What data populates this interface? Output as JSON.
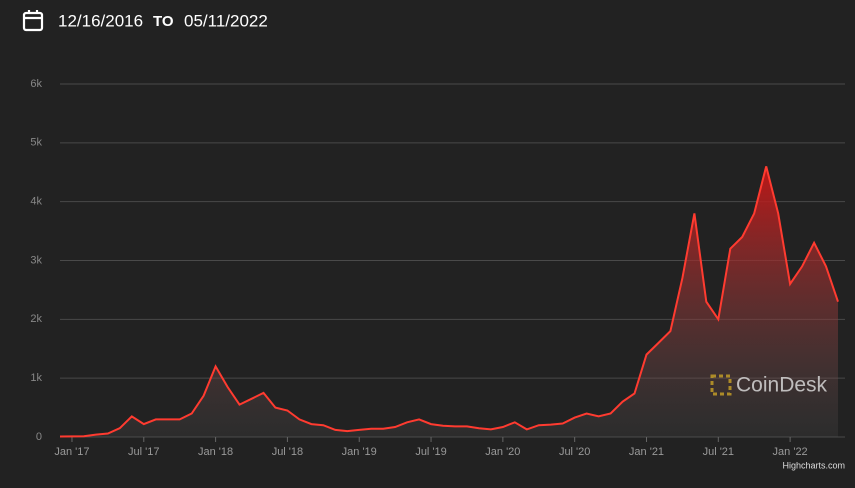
{
  "header": {
    "from": "12/16/2016",
    "separator": "TO",
    "to": "05/11/2022"
  },
  "chart_data": {
    "type": "area",
    "color": "#ff3b30",
    "x": [
      "2016-12",
      "2017-01",
      "2017-02",
      "2017-03",
      "2017-04",
      "2017-05",
      "2017-06",
      "2017-07",
      "2017-08",
      "2017-09",
      "2017-10",
      "2017-11",
      "2017-12",
      "2018-01",
      "2018-02",
      "2018-03",
      "2018-04",
      "2018-05",
      "2018-06",
      "2018-07",
      "2018-08",
      "2018-09",
      "2018-10",
      "2018-11",
      "2018-12",
      "2019-01",
      "2019-02",
      "2019-03",
      "2019-04",
      "2019-05",
      "2019-06",
      "2019-07",
      "2019-08",
      "2019-09",
      "2019-10",
      "2019-11",
      "2019-12",
      "2020-01",
      "2020-02",
      "2020-03",
      "2020-04",
      "2020-05",
      "2020-06",
      "2020-07",
      "2020-08",
      "2020-09",
      "2020-10",
      "2020-11",
      "2020-12",
      "2021-01",
      "2021-02",
      "2021-03",
      "2021-04",
      "2021-05",
      "2021-06",
      "2021-07",
      "2021-08",
      "2021-09",
      "2021-10",
      "2021-11",
      "2021-12",
      "2022-01",
      "2022-02",
      "2022-03",
      "2022-04",
      "2022-05"
    ],
    "values": [
      8,
      10,
      12,
      40,
      60,
      150,
      350,
      220,
      300,
      300,
      300,
      400,
      700,
      1200,
      850,
      550,
      650,
      750,
      500,
      450,
      300,
      220,
      200,
      120,
      100,
      120,
      140,
      140,
      170,
      250,
      300,
      220,
      190,
      180,
      180,
      150,
      130,
      170,
      250,
      130,
      200,
      210,
      230,
      330,
      400,
      350,
      400,
      600,
      740,
      1400,
      1600,
      1800,
      2700,
      3800,
      2300,
      2000,
      3200,
      3400,
      3800,
      4600,
      3800,
      2600,
      2900,
      3300,
      2900,
      2300
    ],
    "xlim": [
      "2016-12",
      "2022-05"
    ],
    "xticks": [
      {
        "value": "2017-01",
        "label": "Jan '17"
      },
      {
        "value": "2017-07",
        "label": "Jul '17"
      },
      {
        "value": "2018-01",
        "label": "Jan '18"
      },
      {
        "value": "2018-07",
        "label": "Jul '18"
      },
      {
        "value": "2019-01",
        "label": "Jan '19"
      },
      {
        "value": "2019-07",
        "label": "Jul '19"
      },
      {
        "value": "2020-01",
        "label": "Jan '20"
      },
      {
        "value": "2020-07",
        "label": "Jul '20"
      },
      {
        "value": "2021-01",
        "label": "Jan '21"
      },
      {
        "value": "2021-07",
        "label": "Jul '21"
      },
      {
        "value": "2022-01",
        "label": "Jan '22"
      }
    ],
    "ylim": [
      0,
      6000
    ],
    "yticks": [
      0,
      {
        "value": 1000,
        "label": "1k"
      },
      {
        "value": 2000,
        "label": "2k"
      },
      {
        "value": 3000,
        "label": "3k"
      },
      {
        "value": 4000,
        "label": "4k"
      },
      {
        "value": 5000,
        "label": "5k"
      },
      {
        "value": 6000,
        "label": "6k"
      }
    ],
    "grid": true,
    "watermark": "CoinDesk",
    "credit": "Highcharts.com"
  }
}
